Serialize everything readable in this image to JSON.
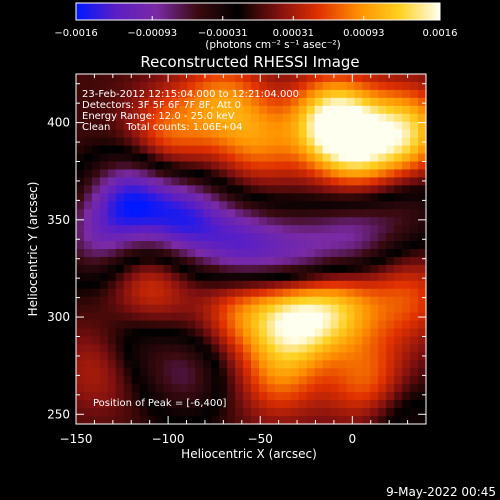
{
  "chart_data": {
    "type": "heatmap",
    "title": "Reconstructed RHESSI Image",
    "xlabel": "Heliocentric X (arcsec)",
    "ylabel": "Heliocentric Y (arcsec)",
    "xlim": [
      -150,
      40
    ],
    "ylim": [
      245,
      425
    ],
    "x_ticks": [
      -150,
      -100,
      -50,
      0
    ],
    "y_ticks": [
      250,
      300,
      350,
      400
    ],
    "colorbar": {
      "range": [
        -0.0016,
        0.0016
      ],
      "tick_values": [
        -0.0016,
        -0.00093,
        -0.00031,
        0.00031,
        0.00093,
        0.0016
      ],
      "tick_labels": [
        "−0.0016",
        "−0.00093",
        "−0.00031",
        "0.00031",
        "0.00093",
        "0.0016"
      ],
      "unit_label": "(photons cm⁻² s⁻¹ asec⁻²)",
      "stops": [
        "#0018ff",
        "#5c1fc4",
        "#7a2aa4",
        "#3a0a10",
        "#000000",
        "#801010",
        "#e03000",
        "#ff9000",
        "#ffd020",
        "#fffff0"
      ]
    },
    "annotations": [
      "23-Feb-2012 12:15:04.000 to 12:21:04.000",
      "Detectors: 3F 5F 6F 7F 8F, Att 0",
      "Energy Range: 12.0 - 25.0 keV",
      "Clean     Total counts: 1.06E+04"
    ],
    "peak_text": "Position of Peak = [-6,400]",
    "peak": {
      "x": -6,
      "y": 400
    },
    "features": [
      {
        "x": -10,
        "y": 400,
        "value": 0.0016
      },
      {
        "x": 30,
        "y": 395,
        "value": 0.0012
      },
      {
        "x": 5,
        "y": 385,
        "value": 0.0009
      },
      {
        "x": -100,
        "y": 395,
        "value": 0.0007
      },
      {
        "x": -70,
        "y": 410,
        "value": 0.0008
      },
      {
        "x": -50,
        "y": 390,
        "value": 0.0007
      },
      {
        "x": -30,
        "y": 300,
        "value": 0.0014
      },
      {
        "x": -5,
        "y": 305,
        "value": 0.0009
      },
      {
        "x": -60,
        "y": 305,
        "value": 0.0008
      },
      {
        "x": -110,
        "y": 315,
        "value": 0.0006
      },
      {
        "x": -40,
        "y": 270,
        "value": 0.0007
      },
      {
        "x": 10,
        "y": 265,
        "value": 0.0008
      },
      {
        "x": 30,
        "y": 310,
        "value": 0.0006
      },
      {
        "x": -135,
        "y": 275,
        "value": 0.0005
      },
      {
        "x": -120,
        "y": 360,
        "value": -0.0013
      },
      {
        "x": -90,
        "y": 350,
        "value": -0.0012
      },
      {
        "x": -60,
        "y": 335,
        "value": -0.0011
      },
      {
        "x": -30,
        "y": 330,
        "value": -0.0009
      },
      {
        "x": 0,
        "y": 340,
        "value": -0.0008
      },
      {
        "x": 30,
        "y": 355,
        "value": -0.0005
      },
      {
        "x": -140,
        "y": 340,
        "value": -0.0007
      },
      {
        "x": -90,
        "y": 270,
        "value": -0.0006
      },
      {
        "x": -120,
        "y": 285,
        "value": -0.0005
      },
      {
        "x": 25,
        "y": 250,
        "value": -0.0005
      }
    ]
  },
  "footer": {
    "date": "9-May-2022 00:45"
  }
}
